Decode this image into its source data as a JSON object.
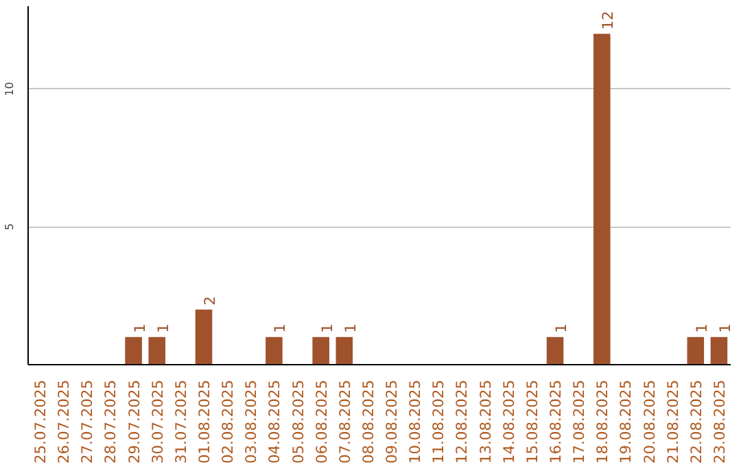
{
  "chart_data": {
    "type": "bar",
    "categories": [
      "25.07.2025",
      "26.07.2025",
      "27.07.2025",
      "28.07.2025",
      "29.07.2025",
      "30.07.2025",
      "31.07.2025",
      "01.08.2025",
      "02.08.2025",
      "03.08.2025",
      "04.08.2025",
      "05.08.2025",
      "06.08.2025",
      "07.08.2025",
      "08.08.2025",
      "09.08.2025",
      "10.08.2025",
      "11.08.2025",
      "12.08.2025",
      "13.08.2025",
      "14.08.2025",
      "15.08.2025",
      "16.08.2025",
      "17.08.2025",
      "18.08.2025",
      "19.08.2025",
      "20.08.2025",
      "21.08.2025",
      "22.08.2025",
      "23.08.2025"
    ],
    "values": [
      0,
      0,
      0,
      0,
      1,
      1,
      0,
      2,
      0,
      0,
      1,
      0,
      1,
      1,
      0,
      0,
      0,
      0,
      0,
      0,
      0,
      0,
      1,
      0,
      12,
      0,
      0,
      0,
      1,
      1
    ],
    "value_labels": [
      null,
      null,
      null,
      null,
      "1",
      "1",
      null,
      "2",
      null,
      null,
      "1",
      null,
      "1",
      "1",
      null,
      null,
      null,
      null,
      null,
      null,
      null,
      null,
      "1",
      null,
      "12",
      null,
      null,
      null,
      "1",
      "1"
    ],
    "color": "#a0522d",
    "ylim": [
      0,
      13
    ],
    "yticks": [
      5,
      10
    ],
    "grid": "y"
  }
}
